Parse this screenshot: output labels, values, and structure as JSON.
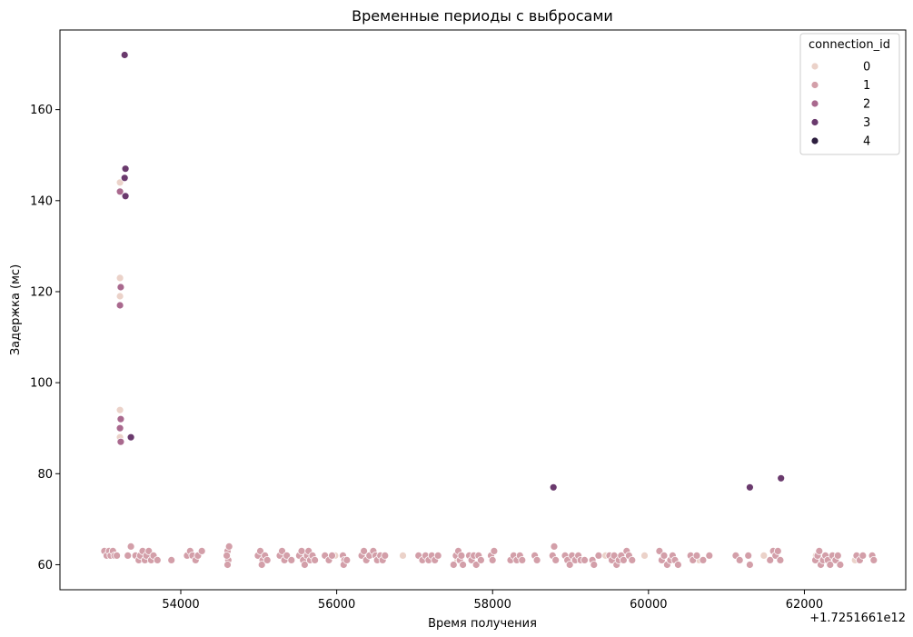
{
  "chart_data": {
    "type": "scatter",
    "title": "Временные периоды с выбросами",
    "xlabel": "Время получения",
    "ylabel": "Задержка (мс)",
    "x_offset_label": "+1.7251661e12",
    "xlim": [
      52450,
      63300
    ],
    "ylim": [
      54.5,
      177.5
    ],
    "x_ticks": [
      54000,
      56000,
      58000,
      60000,
      62000
    ],
    "x_tick_labels": [
      "54000",
      "56000",
      "58000",
      "60000",
      "62000"
    ],
    "y_ticks": [
      60,
      80,
      100,
      120,
      140,
      160
    ],
    "y_tick_labels": [
      "60",
      "80",
      "100",
      "120",
      "140",
      "160"
    ],
    "grid": false,
    "legend_position": "top-right",
    "legend": {
      "title": "connection_id",
      "entries": [
        {
          "label": "0",
          "color": "#ebd2c9"
        },
        {
          "label": "1",
          "color": "#d39fa9"
        },
        {
          "label": "2",
          "color": "#a9698e"
        },
        {
          "label": "3",
          "color": "#6a3a6d"
        },
        {
          "label": "4",
          "color": "#2d1e3e"
        }
      ]
    },
    "series": [
      {
        "name": "0",
        "color": "#ebd2c9",
        "points": [
          [
            53220,
            144
          ],
          [
            53220,
            123
          ],
          [
            53220,
            119
          ],
          [
            53220,
            94
          ],
          [
            53220,
            88
          ],
          [
            53050,
            63
          ],
          [
            53120,
            62
          ],
          [
            54220,
            62
          ],
          [
            55050,
            62
          ],
          [
            55980,
            62
          ],
          [
            56850,
            62
          ],
          [
            57550,
            61
          ],
          [
            58550,
            62
          ],
          [
            59450,
            62
          ],
          [
            59950,
            62
          ],
          [
            60650,
            61
          ],
          [
            61480,
            62
          ],
          [
            62150,
            62
          ],
          [
            62650,
            61
          ]
        ]
      },
      {
        "name": "1",
        "color": "#d39fa9",
        "points": [
          [
            53020,
            63
          ],
          [
            53050,
            62
          ],
          [
            53080,
            63
          ],
          [
            53100,
            62
          ],
          [
            53130,
            63
          ],
          [
            53150,
            62
          ],
          [
            53180,
            62
          ],
          [
            53320,
            62
          ],
          [
            53360,
            64
          ],
          [
            53420,
            62
          ],
          [
            53460,
            61
          ],
          [
            53480,
            62
          ],
          [
            53510,
            63
          ],
          [
            53540,
            61
          ],
          [
            53560,
            62
          ],
          [
            53590,
            63
          ],
          [
            53620,
            61
          ],
          [
            53650,
            62
          ],
          [
            53700,
            61
          ],
          [
            53880,
            61
          ],
          [
            54080,
            62
          ],
          [
            54120,
            63
          ],
          [
            54150,
            62
          ],
          [
            54190,
            61
          ],
          [
            54220,
            62
          ],
          [
            54270,
            63
          ],
          [
            54590,
            62
          ],
          [
            54600,
            63
          ],
          [
            54610,
            61
          ],
          [
            54600,
            60
          ],
          [
            54620,
            64
          ],
          [
            54590,
            62
          ],
          [
            54990,
            62
          ],
          [
            55020,
            63
          ],
          [
            55050,
            61
          ],
          [
            55040,
            60
          ],
          [
            55080,
            62
          ],
          [
            55110,
            61
          ],
          [
            55270,
            62
          ],
          [
            55300,
            63
          ],
          [
            55330,
            61
          ],
          [
            55360,
            62
          ],
          [
            55420,
            61
          ],
          [
            55520,
            62
          ],
          [
            55550,
            63
          ],
          [
            55570,
            61
          ],
          [
            55590,
            60
          ],
          [
            55620,
            62
          ],
          [
            55640,
            63
          ],
          [
            55660,
            61
          ],
          [
            55690,
            62
          ],
          [
            55720,
            61
          ],
          [
            55850,
            62
          ],
          [
            55900,
            61
          ],
          [
            55940,
            62
          ],
          [
            56080,
            62
          ],
          [
            56100,
            61
          ],
          [
            56090,
            60
          ],
          [
            56130,
            61
          ],
          [
            56320,
            62
          ],
          [
            56350,
            63
          ],
          [
            56380,
            61
          ],
          [
            56420,
            62
          ],
          [
            56470,
            63
          ],
          [
            56500,
            62
          ],
          [
            56520,
            61
          ],
          [
            56560,
            62
          ],
          [
            56590,
            61
          ],
          [
            56620,
            62
          ],
          [
            57050,
            62
          ],
          [
            57100,
            61
          ],
          [
            57140,
            62
          ],
          [
            57180,
            61
          ],
          [
            57220,
            62
          ],
          [
            57260,
            61
          ],
          [
            57300,
            62
          ],
          [
            57500,
            60
          ],
          [
            57530,
            62
          ],
          [
            57560,
            63
          ],
          [
            57580,
            61
          ],
          [
            57600,
            62
          ],
          [
            57620,
            60
          ],
          [
            57700,
            62
          ],
          [
            57730,
            61
          ],
          [
            57760,
            62
          ],
          [
            57790,
            60
          ],
          [
            57820,
            62
          ],
          [
            57850,
            61
          ],
          [
            57980,
            62
          ],
          [
            58020,
            63
          ],
          [
            58000,
            61
          ],
          [
            58230,
            61
          ],
          [
            58270,
            62
          ],
          [
            58310,
            61
          ],
          [
            58350,
            62
          ],
          [
            58380,
            61
          ],
          [
            58540,
            62
          ],
          [
            58570,
            61
          ],
          [
            58770,
            62
          ],
          [
            58790,
            64
          ],
          [
            58810,
            61
          ],
          [
            58930,
            62
          ],
          [
            58960,
            61
          ],
          [
            58990,
            60
          ],
          [
            59020,
            62
          ],
          [
            59060,
            61
          ],
          [
            59100,
            62
          ],
          [
            59130,
            61
          ],
          [
            59180,
            61
          ],
          [
            59280,
            61
          ],
          [
            59300,
            60
          ],
          [
            59360,
            62
          ],
          [
            59500,
            62
          ],
          [
            59530,
            61
          ],
          [
            59560,
            62
          ],
          [
            59590,
            60
          ],
          [
            59620,
            61
          ],
          [
            59650,
            62
          ],
          [
            59680,
            61
          ],
          [
            59720,
            63
          ],
          [
            59750,
            62
          ],
          [
            59790,
            61
          ],
          [
            60140,
            63
          ],
          [
            60170,
            61
          ],
          [
            60200,
            62
          ],
          [
            60240,
            60
          ],
          [
            60280,
            61
          ],
          [
            60310,
            62
          ],
          [
            60340,
            61
          ],
          [
            60380,
            60
          ],
          [
            60540,
            62
          ],
          [
            60570,
            61
          ],
          [
            60620,
            62
          ],
          [
            60700,
            61
          ],
          [
            60780,
            62
          ],
          [
            61120,
            62
          ],
          [
            61170,
            61
          ],
          [
            61280,
            62
          ],
          [
            61300,
            60
          ],
          [
            61560,
            61
          ],
          [
            61600,
            63
          ],
          [
            61630,
            62
          ],
          [
            61660,
            63
          ],
          [
            61690,
            61
          ],
          [
            62140,
            61
          ],
          [
            62170,
            62
          ],
          [
            62190,
            63
          ],
          [
            62210,
            60
          ],
          [
            62240,
            61
          ],
          [
            62270,
            62
          ],
          [
            62300,
            61
          ],
          [
            62330,
            60
          ],
          [
            62360,
            62
          ],
          [
            62400,
            61
          ],
          [
            62430,
            62
          ],
          [
            62460,
            60
          ],
          [
            62670,
            62
          ],
          [
            62710,
            61
          ],
          [
            62750,
            62
          ],
          [
            62870,
            62
          ],
          [
            62890,
            61
          ]
        ]
      },
      {
        "name": "2",
        "color": "#a9698e",
        "points": [
          [
            53220,
            142
          ],
          [
            53230,
            121
          ],
          [
            53220,
            117
          ],
          [
            53230,
            92
          ],
          [
            53220,
            90
          ],
          [
            53230,
            87
          ]
        ]
      },
      {
        "name": "3",
        "color": "#6a3a6d",
        "points": [
          [
            53280,
            172
          ],
          [
            53290,
            147
          ],
          [
            53280,
            145
          ],
          [
            53290,
            141
          ],
          [
            53360,
            88
          ],
          [
            58780,
            77
          ],
          [
            61300,
            77
          ],
          [
            61700,
            79
          ]
        ]
      },
      {
        "name": "4",
        "color": "#2d1e3e",
        "points": []
      }
    ]
  }
}
